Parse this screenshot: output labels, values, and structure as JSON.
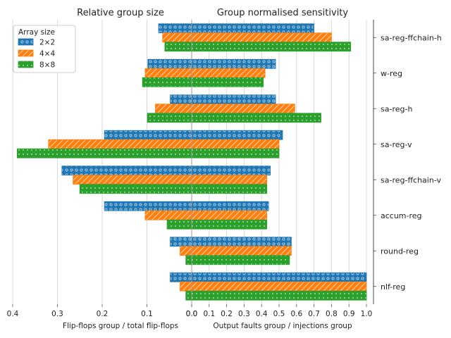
{
  "chart_data": [
    {
      "type": "bar",
      "orientation": "horizontal",
      "direction": "reversed",
      "title": "Relative group size",
      "xlabel": "Flip-flops group / total flip-flops",
      "xlim": [
        0.4,
        0.0
      ],
      "xticks": [
        "0.4",
        "0.3",
        "0.2",
        "0.1",
        "0.0"
      ],
      "categories": [
        "sa-reg-ffchain-h",
        "w-reg",
        "sa-reg-h",
        "sa-reg-v",
        "sa-reg-ffchain-v",
        "accum-reg",
        "round-reg",
        "nlf-reg"
      ],
      "series": [
        {
          "name": "2×2",
          "values": [
            0.074,
            0.098,
            0.048,
            0.195,
            0.29,
            0.195,
            0.048,
            0.048
          ]
        },
        {
          "name": "4×4",
          "values": [
            0.065,
            0.104,
            0.081,
            0.32,
            0.265,
            0.104,
            0.026,
            0.026
          ]
        },
        {
          "name": "8×8",
          "values": [
            0.06,
            0.11,
            0.099,
            0.39,
            0.25,
            0.055,
            0.013,
            0.013
          ]
        }
      ]
    },
    {
      "type": "bar",
      "orientation": "horizontal",
      "title": "Group normalised sensitivity",
      "xlabel": "Output faults group / injections group",
      "xlim": [
        0.0,
        1.0
      ],
      "xticks": [
        "0.0",
        "0.1",
        "0.2",
        "0.3",
        "0.4",
        "0.5",
        "0.6",
        "0.7",
        "0.8",
        "0.9",
        "1.0"
      ],
      "categories": [
        "sa-reg-ffchain-h",
        "w-reg",
        "sa-reg-h",
        "sa-reg-v",
        "sa-reg-ffchain-v",
        "accum-reg",
        "round-reg",
        "nlf-reg"
      ],
      "series": [
        {
          "name": "2×2",
          "values": [
            0.7,
            0.48,
            0.48,
            0.52,
            0.45,
            0.44,
            0.57,
            1.0
          ]
        },
        {
          "name": "4×4",
          "values": [
            0.8,
            0.42,
            0.59,
            0.5,
            0.43,
            0.43,
            0.57,
            1.0
          ]
        },
        {
          "name": "8×8",
          "values": [
            0.91,
            0.41,
            0.74,
            0.5,
            0.43,
            0.43,
            0.56,
            1.0
          ]
        }
      ]
    }
  ],
  "legend": {
    "title": "Array size",
    "items": [
      "2×2",
      "4×4",
      "8×8"
    ],
    "placement": "upper-left"
  },
  "colors": {
    "2×2": "#1f77b4",
    "4×4": "#ff7f0e",
    "8×8": "#2ca02c"
  },
  "hatch": {
    "2×2": "dots",
    "4×4": "diagonal",
    "8×8": "small-dots"
  }
}
